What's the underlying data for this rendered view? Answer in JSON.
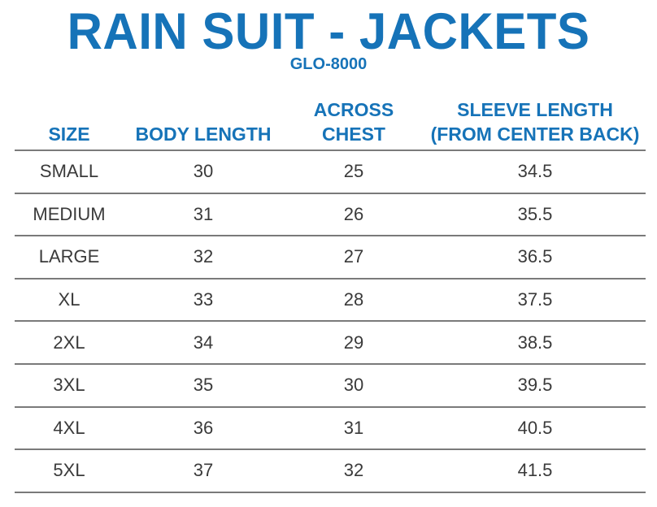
{
  "title": "RAIN SUIT - JACKETS",
  "subtitle": "GLO-8000",
  "headers": {
    "size": "SIZE",
    "body_length": "BODY LENGTH",
    "across_chest": "ACROSS\nCHEST",
    "sleeve_length": "SLEEVE LENGTH\n(FROM CENTER BACK)"
  },
  "rows": [
    {
      "size": "SMALL",
      "body_length": "30",
      "across_chest": "25",
      "sleeve_length": "34.5"
    },
    {
      "size": "MEDIUM",
      "body_length": "31",
      "across_chest": "26",
      "sleeve_length": "35.5"
    },
    {
      "size": "LARGE",
      "body_length": "32",
      "across_chest": "27",
      "sleeve_length": "36.5"
    },
    {
      "size": "XL",
      "body_length": "33",
      "across_chest": "28",
      "sleeve_length": "37.5"
    },
    {
      "size": "2XL",
      "body_length": "34",
      "across_chest": "29",
      "sleeve_length": "38.5"
    },
    {
      "size": "3XL",
      "body_length": "35",
      "across_chest": "30",
      "sleeve_length": "39.5"
    },
    {
      "size": "4XL",
      "body_length": "36",
      "across_chest": "31",
      "sleeve_length": "40.5"
    },
    {
      "size": "5XL",
      "body_length": "37",
      "across_chest": "32",
      "sleeve_length": "41.5"
    }
  ],
  "colors": {
    "accent": "#1673b8",
    "text": "#3a3a3a",
    "rule": "#7a7a7a"
  }
}
